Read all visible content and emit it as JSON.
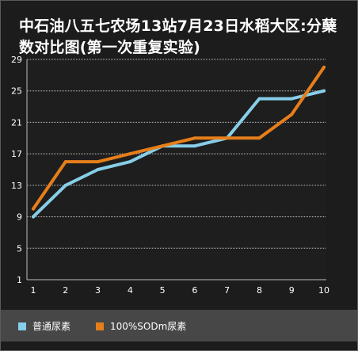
{
  "chart_data": {
    "type": "line",
    "title": "中石油八五七农场13站7月23日水稻大区:分蘖数对比图(第一次重复实验)",
    "xlabel": "",
    "ylabel": "",
    "categories": [
      "1",
      "2",
      "3",
      "4",
      "5",
      "6",
      "7",
      "8",
      "9",
      "10"
    ],
    "ylim": [
      1,
      29
    ],
    "yticks": [
      "1",
      "5",
      "9",
      "13",
      "17",
      "21",
      "25",
      "29"
    ],
    "grid": true,
    "legend_position": "bottom",
    "series": [
      {
        "name": "普通尿素",
        "color": "#87cee8",
        "values": [
          9,
          13,
          15,
          16,
          18,
          18,
          19,
          24,
          24,
          25
        ]
      },
      {
        "name": "100%SODm尿素",
        "color": "#e67e1a",
        "values": [
          10,
          16,
          16,
          17,
          18,
          19,
          19,
          19,
          22,
          28
        ]
      }
    ]
  }
}
